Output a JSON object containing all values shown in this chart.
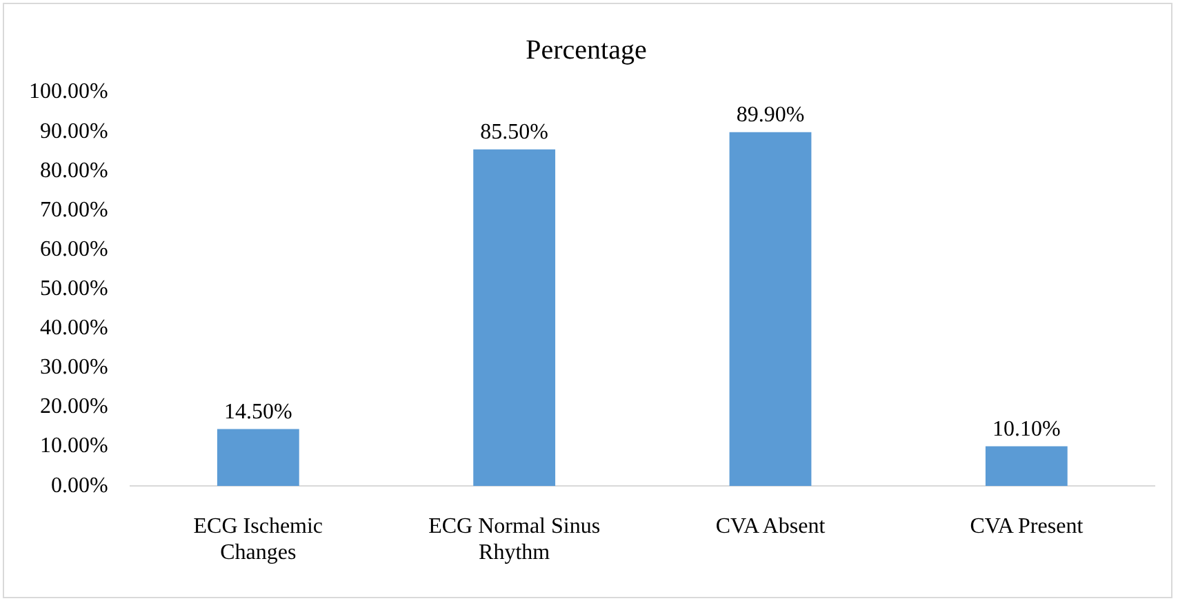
{
  "chart_data": {
    "type": "bar",
    "title": "Percentage",
    "categories": [
      "ECG Ischemic Changes",
      "ECG Normal Sinus Rhythm",
      "CVA Absent",
      "CVA Present"
    ],
    "values": [
      14.5,
      85.5,
      89.9,
      10.1
    ],
    "color": "#5b9bd5",
    "value_labels": [
      "14.50%",
      "85.50%",
      "89.90%",
      "10.10%"
    ],
    "ylim": [
      0,
      100
    ],
    "yticks": [
      {
        "value": 0,
        "label": "0.00%"
      },
      {
        "value": 10,
        "label": "10.00%"
      },
      {
        "value": 20,
        "label": "20.00%"
      },
      {
        "value": 30,
        "label": "30.00%"
      },
      {
        "value": 40,
        "label": "40.00%"
      },
      {
        "value": 50,
        "label": "50.00%"
      },
      {
        "value": 60,
        "label": "60.00%"
      },
      {
        "value": 70,
        "label": "70.00%"
      },
      {
        "value": 80,
        "label": "80.00%"
      },
      {
        "value": 90,
        "label": "90.00%"
      },
      {
        "value": 100,
        "label": "100.00%"
      }
    ]
  }
}
